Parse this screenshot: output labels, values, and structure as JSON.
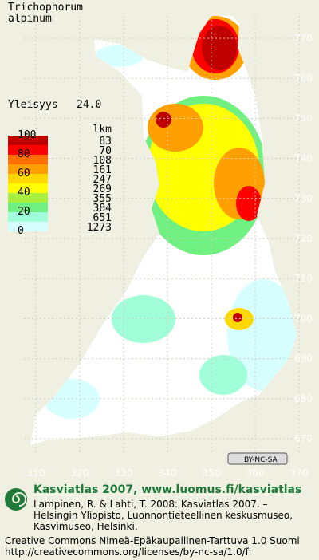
{
  "title_lines": [
    "Trichophorum",
    "alpinum"
  ],
  "frequency_label": "Yleisyys",
  "frequency_value": "24.0",
  "legend": {
    "count_header": "lkm",
    "scale_labels": [
      100,
      80,
      60,
      40,
      20,
      0
    ],
    "counts": [
      83,
      70,
      108,
      161,
      247,
      269,
      355,
      384,
      651,
      1273
    ],
    "colors": [
      "#c00000",
      "#ff0000",
      "#ff7000",
      "#ffa000",
      "#ffd800",
      "#ffff00",
      "#a8f040",
      "#70f080",
      "#a0ffd8",
      "#d8ffff",
      "#ffffff"
    ]
  },
  "map_axes": {
    "xticks": [
      310,
      320,
      330,
      340,
      350,
      360,
      370
    ],
    "yticks": [
      670,
      680,
      690,
      700,
      710,
      720,
      730,
      740,
      750,
      760,
      770
    ]
  },
  "badge": "BY-NC-SA",
  "footer": {
    "site": "Kasviatlas 2007, www.luomus.fi/kasviatlas",
    "citation": [
      "Lampinen, R. & Lahti, T. 2008: Kasviatlas 2007. –",
      "Helsingin Yliopisto, Luonnontieteellinen keskusmuseo,",
      "Kasvimuseo, Helsinki."
    ],
    "license": [
      "Creative Commons Nimeä-Epäkaupallinen-Tarttuva 1.0 Suomi",
      "http://creativecommons.org/licenses/by-nc-sa/1.0/fi"
    ]
  }
}
